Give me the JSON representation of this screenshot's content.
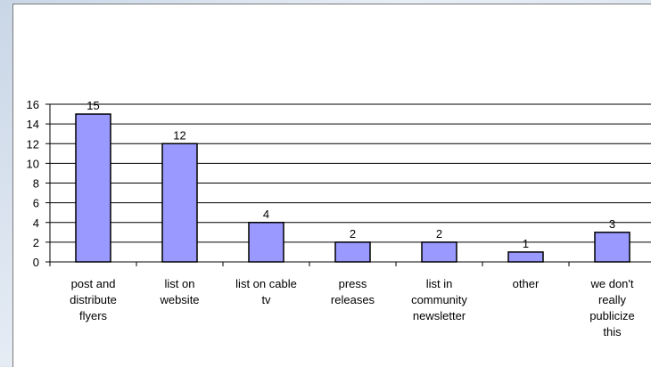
{
  "chart_data": {
    "type": "bar",
    "categories": [
      [
        "post and",
        "distribute",
        "flyers"
      ],
      [
        "list on",
        "website"
      ],
      [
        "list on cable",
        "tv"
      ],
      [
        "press",
        "releases"
      ],
      [
        "list in",
        "community",
        "newsletter"
      ],
      [
        "other"
      ],
      [
        "we don't",
        "really",
        "publicize",
        "this"
      ]
    ],
    "values": [
      15,
      12,
      4,
      2,
      2,
      1,
      3
    ],
    "data_labels": [
      "15",
      "12",
      "4",
      "2",
      "2",
      "1",
      "3"
    ],
    "ylim": [
      0,
      16
    ],
    "yticks": [
      "0",
      "2",
      "4",
      "6",
      "8",
      "10",
      "12",
      "14",
      "16"
    ],
    "grid": true,
    "colors": {
      "bar_fill": "#9999ff",
      "bar_stroke": "#000000",
      "grid": "#000000"
    },
    "title": "",
    "xlabel": "",
    "ylabel": ""
  }
}
